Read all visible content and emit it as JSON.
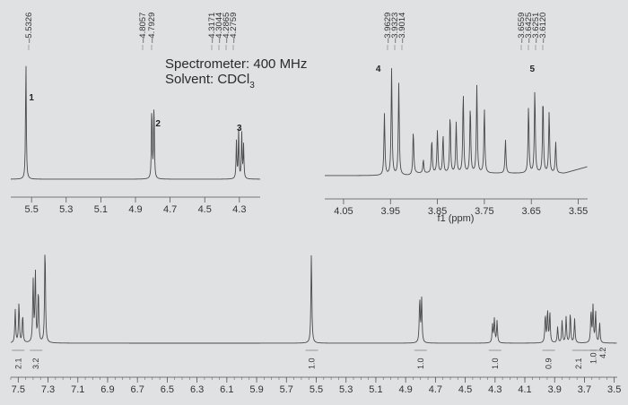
{
  "info": {
    "spectrometer": "Spectrometer: 400 MHz",
    "solvent_prefix": "Solvent: CDCl",
    "solvent_sub": "3"
  },
  "chart_data": [
    {
      "type": "line",
      "panel": "inset-left",
      "xlim": [
        5.62,
        4.18
      ],
      "ticks": [
        "5.5",
        "5.3",
        "5.1",
        "4.9",
        "4.7",
        "4.5",
        "4.3"
      ],
      "peak_labels": [
        {
          "x": 5.5326,
          "labels": [
            "5.5326"
          ]
        },
        {
          "x": 4.8,
          "labels": [
            "4.8057",
            "4.7929"
          ]
        },
        {
          "x": 4.3,
          "labels": [
            "4.3171",
            "4.3044",
            "4.2865",
            "4.2759"
          ]
        }
      ],
      "signal_labels": [
        {
          "text": "1",
          "x": 5.5
        },
        {
          "text": "2",
          "x": 4.77
        },
        {
          "text": "3",
          "x": 4.3
        }
      ],
      "peaks": [
        {
          "x": 5.5326,
          "h": 0.9
        },
        {
          "x": 4.8057,
          "h": 0.56
        },
        {
          "x": 4.7929,
          "h": 0.56
        },
        {
          "x": 4.3171,
          "h": 0.28
        },
        {
          "x": 4.3044,
          "h": 0.36
        },
        {
          "x": 4.2865,
          "h": 0.34
        },
        {
          "x": 4.2759,
          "h": 0.25
        }
      ]
    },
    {
      "type": "line",
      "panel": "inset-right",
      "xlabel": "f1 (ppm)",
      "xlim": [
        4.09,
        3.53
      ],
      "ticks": [
        "4.05",
        "3.95",
        "3.85",
        "3.75",
        "3.65",
        "3.55"
      ],
      "peak_labels": [
        {
          "x": 3.94,
          "labels": [
            "3.9629",
            "3.9323",
            "3.9014"
          ]
        },
        {
          "x": 3.64,
          "labels": [
            "3.6559",
            "3.6425",
            "3.6251",
            "3.6120"
          ]
        }
      ],
      "signal_labels": [
        {
          "text": "4",
          "x": 3.953
        },
        {
          "text": "5",
          "x": 3.625
        }
      ],
      "peaks": [
        {
          "x": 3.9629,
          "h": 0.55
        },
        {
          "x": 3.9476,
          "h": 0.95
        },
        {
          "x": 3.9323,
          "h": 0.82
        },
        {
          "x": 3.9014,
          "h": 0.4
        },
        {
          "x": 3.88,
          "h": 0.12
        },
        {
          "x": 3.862,
          "h": 0.3
        },
        {
          "x": 3.85,
          "h": 0.38
        },
        {
          "x": 3.838,
          "h": 0.34
        },
        {
          "x": 3.823,
          "h": 0.52
        },
        {
          "x": 3.81,
          "h": 0.45
        },
        {
          "x": 3.795,
          "h": 0.72
        },
        {
          "x": 3.78,
          "h": 0.6
        },
        {
          "x": 3.766,
          "h": 0.78
        },
        {
          "x": 3.75,
          "h": 0.58
        },
        {
          "x": 3.705,
          "h": 0.3
        },
        {
          "x": 3.6559,
          "h": 0.6
        },
        {
          "x": 3.6425,
          "h": 0.75
        },
        {
          "x": 3.6251,
          "h": 0.68
        },
        {
          "x": 3.612,
          "h": 0.55
        },
        {
          "x": 3.598,
          "h": 0.28
        }
      ]
    },
    {
      "type": "line",
      "panel": "full",
      "xlim": [
        7.55,
        3.48
      ],
      "ticks": [
        "7.5",
        "7.3",
        "7.1",
        "6.9",
        "6.7",
        "6.5",
        "6.3",
        "6.1",
        "5.9",
        "5.7",
        "5.5",
        "5.3",
        "5.1",
        "4.9",
        "4.7",
        "4.5",
        "4.3",
        "4.1",
        "3.9",
        "3.7",
        "3.5"
      ],
      "integrals": [
        {
          "x": 7.5,
          "label": "2.1"
        },
        {
          "x": 7.38,
          "label": "3.2"
        },
        {
          "x": 5.53,
          "label": "1.0"
        },
        {
          "x": 4.8,
          "label": "1.0"
        },
        {
          "x": 4.3,
          "label": "1.0"
        },
        {
          "x": 3.94,
          "label": "0.9"
        },
        {
          "x": 3.74,
          "label": "2.1"
        },
        {
          "x": 3.66,
          "label": "1.0"
        },
        {
          "x": 3.62,
          "label": "4.2"
        }
      ],
      "peaks": [
        {
          "x": 7.52,
          "h": 0.33
        },
        {
          "x": 7.495,
          "h": 0.4
        },
        {
          "x": 7.47,
          "h": 0.28
        },
        {
          "x": 7.4,
          "h": 0.62
        },
        {
          "x": 7.385,
          "h": 0.7
        },
        {
          "x": 7.365,
          "h": 0.52
        },
        {
          "x": 7.32,
          "h": 0.98
        },
        {
          "x": 5.5326,
          "h": 0.89
        },
        {
          "x": 4.8057,
          "h": 0.44
        },
        {
          "x": 4.7929,
          "h": 0.44
        },
        {
          "x": 4.3171,
          "h": 0.18
        },
        {
          "x": 4.3044,
          "h": 0.24
        },
        {
          "x": 4.2865,
          "h": 0.22
        },
        {
          "x": 3.9629,
          "h": 0.28
        },
        {
          "x": 3.9476,
          "h": 0.32
        },
        {
          "x": 3.9323,
          "h": 0.3
        },
        {
          "x": 3.88,
          "h": 0.16
        },
        {
          "x": 3.85,
          "h": 0.22
        },
        {
          "x": 3.823,
          "h": 0.26
        },
        {
          "x": 3.795,
          "h": 0.3
        },
        {
          "x": 3.766,
          "h": 0.24
        },
        {
          "x": 3.6559,
          "h": 0.32
        },
        {
          "x": 3.6425,
          "h": 0.36
        },
        {
          "x": 3.6251,
          "h": 0.31
        },
        {
          "x": 3.598,
          "h": 0.2
        }
      ]
    }
  ]
}
